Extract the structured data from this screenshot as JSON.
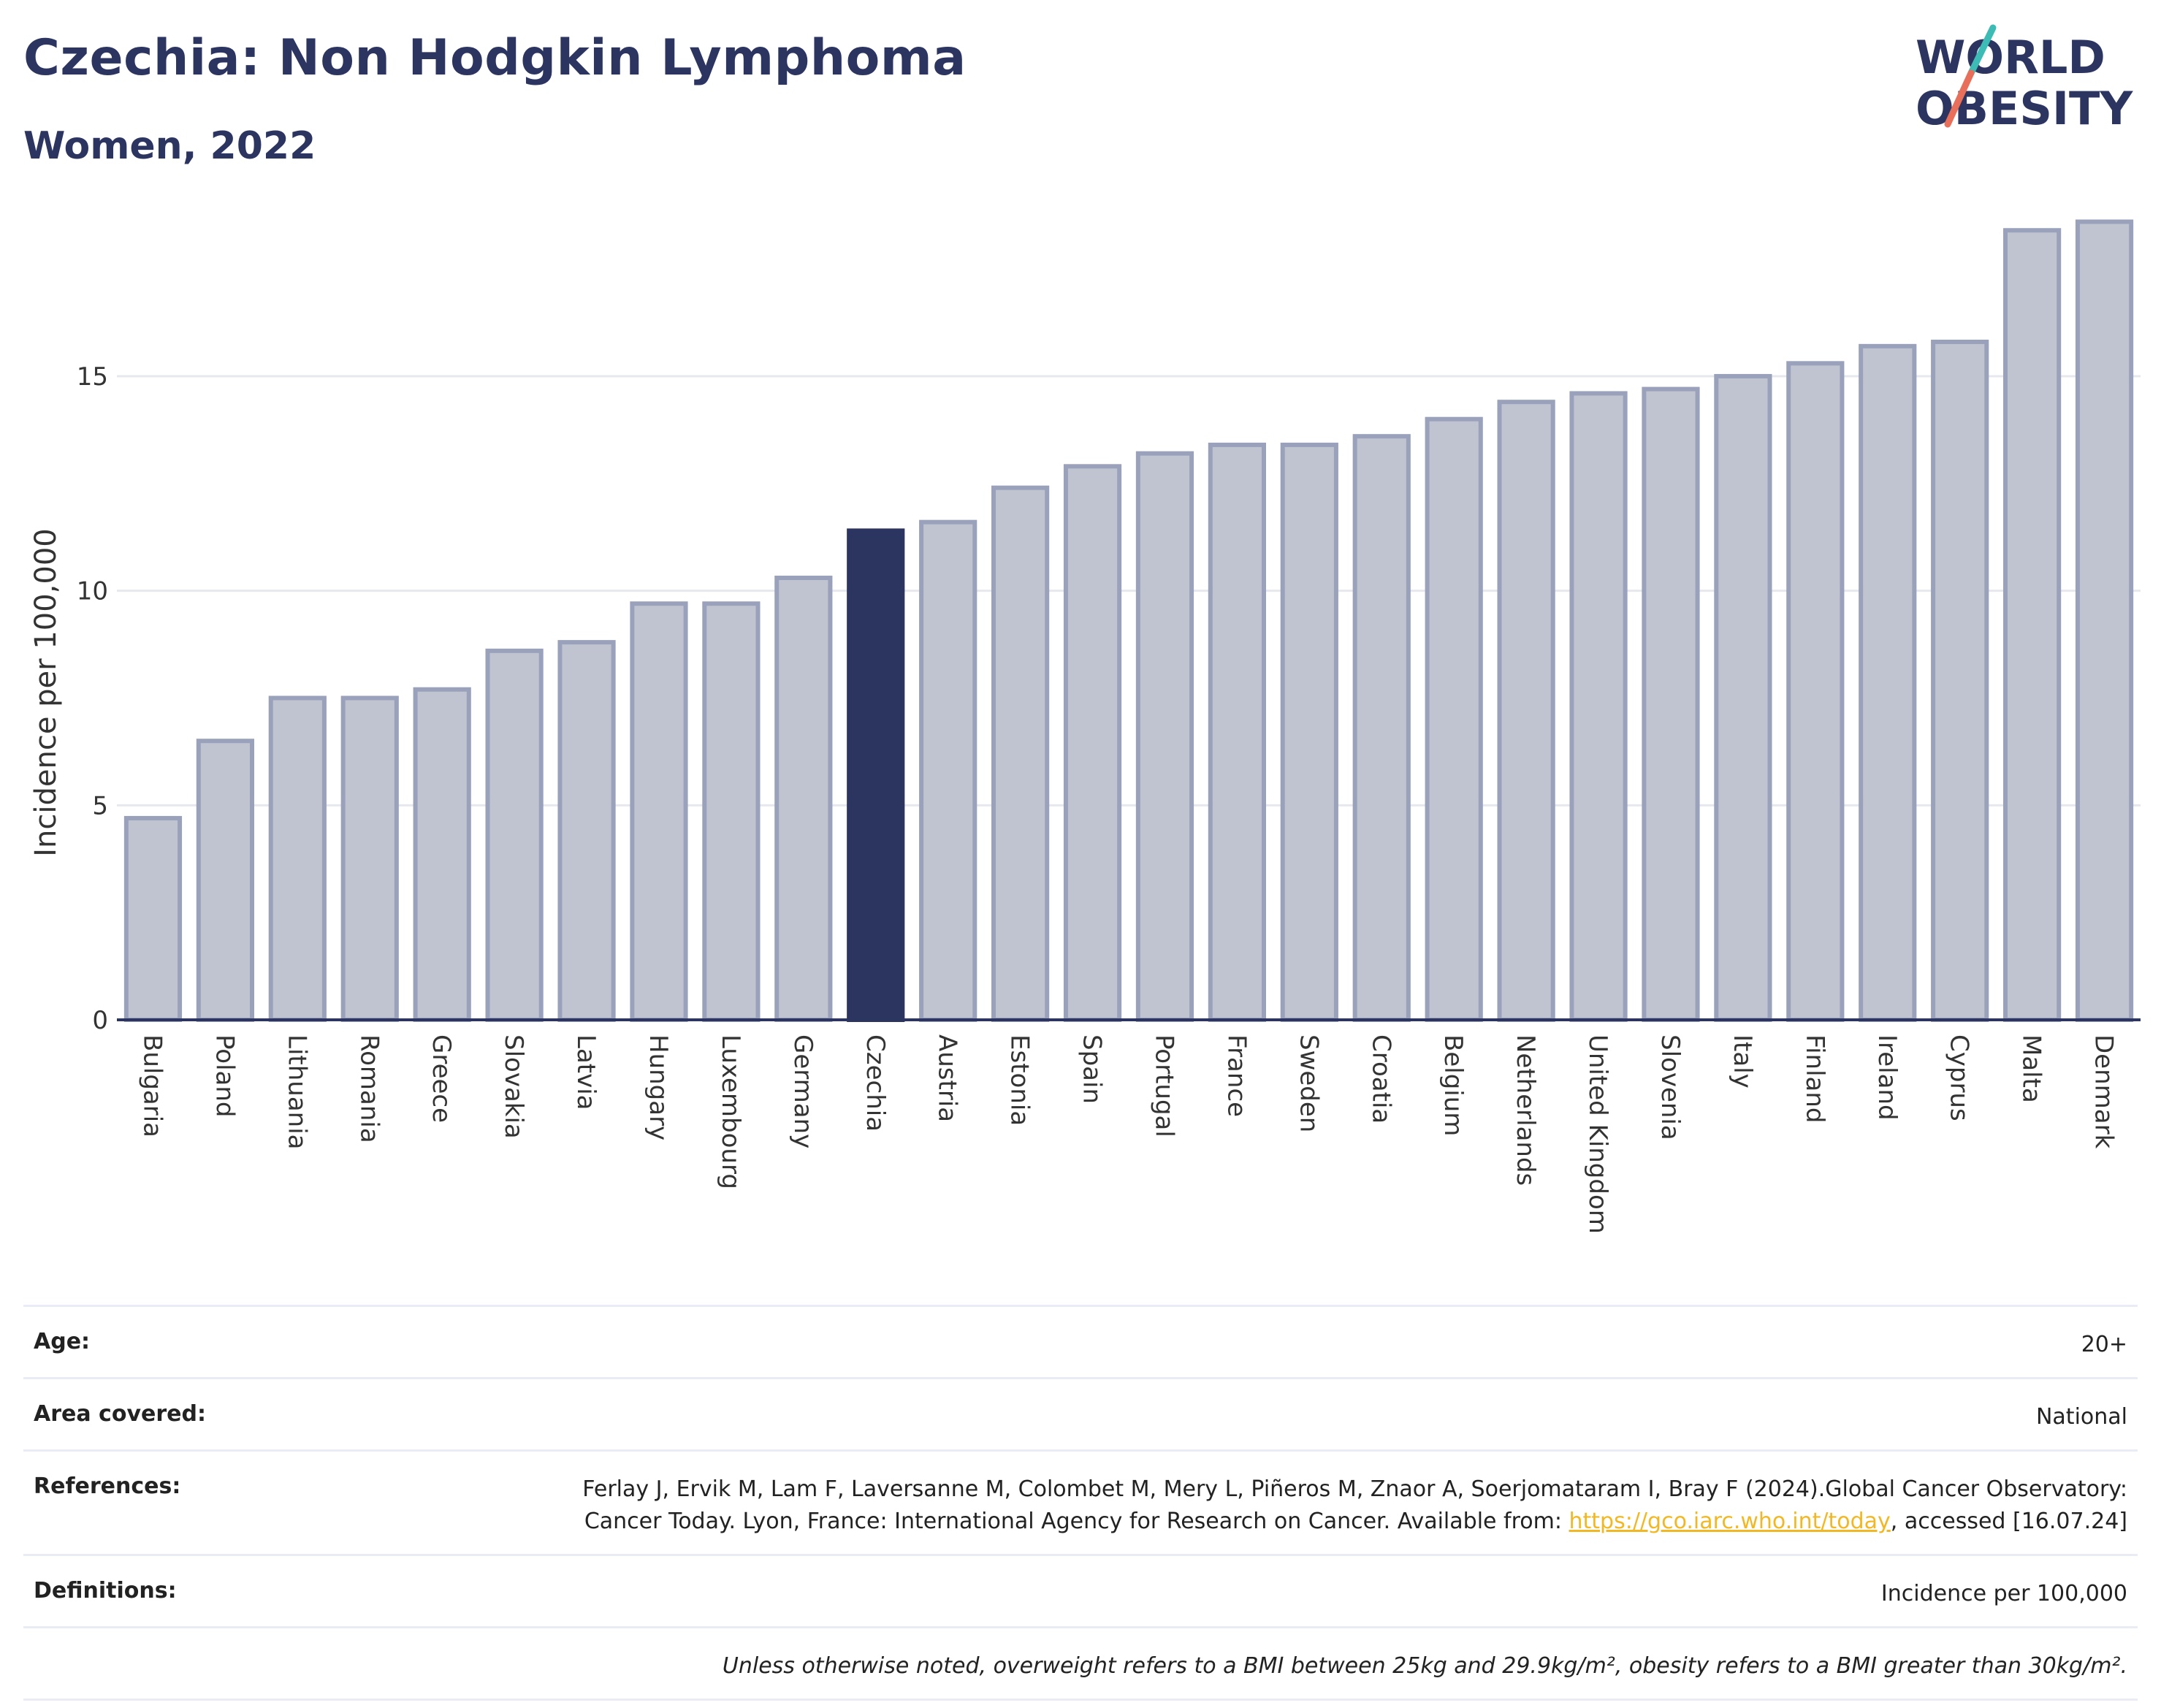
{
  "header": {
    "title": "Czechia: Non Hodgkin Lymphoma",
    "subtitle": "Women, 2022"
  },
  "logo": {
    "line1": "WORLD",
    "line2": "OBESITY"
  },
  "chart_data": {
    "type": "bar",
    "ylabel": "Incidence per 100,000",
    "ylim": [
      0,
      19
    ],
    "yticks": [
      0,
      5,
      10,
      15
    ],
    "grid": true,
    "highlight": "Czechia",
    "categories": [
      "Bulgaria",
      "Poland",
      "Lithuania",
      "Romania",
      "Greece",
      "Slovakia",
      "Latvia",
      "Hungary",
      "Luxembourg",
      "Germany",
      "Czechia",
      "Austria",
      "Estonia",
      "Spain",
      "Portugal",
      "France",
      "Sweden",
      "Croatia",
      "Belgium",
      "Netherlands",
      "United Kingdom",
      "Slovenia",
      "Italy",
      "Finland",
      "Ireland",
      "Cyprus",
      "Malta",
      "Denmark"
    ],
    "values": [
      4.7,
      6.5,
      7.5,
      7.5,
      7.7,
      8.6,
      8.8,
      9.7,
      9.7,
      10.3,
      11.4,
      11.6,
      12.4,
      12.9,
      13.2,
      13.4,
      13.4,
      13.6,
      14.0,
      14.4,
      14.6,
      14.7,
      15.0,
      15.3,
      15.7,
      15.8,
      18.4,
      18.6
    ],
    "colors": {
      "bar": "#c0c4d0",
      "bar_edge": "#9aa2bb",
      "highlight": "#2b3560",
      "grid": "#e6e8ee",
      "axis": "#2b3560"
    }
  },
  "info": {
    "age_label": "Age:",
    "age_value": "20+",
    "area_label": "Area covered:",
    "area_value": "National",
    "references_label": "References:",
    "references_text": "Ferlay J, Ervik M, Lam F, Laversanne M, Colombet M, Mery L, Piñeros M, Znaor A, Soerjomataram I, Bray F (2024).Global Cancer Observatory: Cancer Today. Lyon, France: International Agency for Research on Cancer. Available from:",
    "references_link": "https://gco.iarc.who.int/today",
    "references_suffix": ", accessed [16.07.24]",
    "definitions_label": "Definitions:",
    "definitions_value": "Incidence per 100,000",
    "note": "Unless otherwise noted, overweight refers to a BMI between 25kg and 29.9kg/m², obesity refers to a BMI greater than 30kg/m²."
  }
}
